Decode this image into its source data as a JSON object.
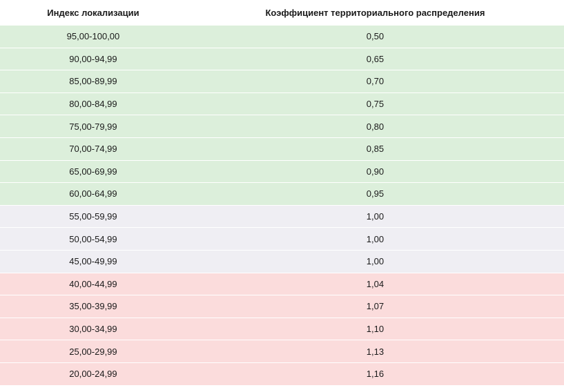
{
  "header": {
    "index_label": "Индекс локализации",
    "coef_label": "Коэффициент территориального распределения"
  },
  "colors": {
    "green": "#dcefdb",
    "grey": "#efeef3",
    "red": "#fbdcdc"
  },
  "rows": [
    {
      "index": "95,00-100,00",
      "coef": "0,50",
      "group": "green"
    },
    {
      "index": "90,00-94,99",
      "coef": "0,65",
      "group": "green"
    },
    {
      "index": "85,00-89,99",
      "coef": "0,70",
      "group": "green"
    },
    {
      "index": "80,00-84,99",
      "coef": "0,75",
      "group": "green"
    },
    {
      "index": "75,00-79,99",
      "coef": "0,80",
      "group": "green"
    },
    {
      "index": "70,00-74,99",
      "coef": "0,85",
      "group": "green"
    },
    {
      "index": "65,00-69,99",
      "coef": "0,90",
      "group": "green"
    },
    {
      "index": "60,00-64,99",
      "coef": "0,95",
      "group": "green"
    },
    {
      "index": "55,00-59,99",
      "coef": "1,00",
      "group": "grey"
    },
    {
      "index": "50,00-54,99",
      "coef": "1,00",
      "group": "grey"
    },
    {
      "index": "45,00-49,99",
      "coef": "1,00",
      "group": "grey"
    },
    {
      "index": "40,00-44,99",
      "coef": "1,04",
      "group": "red"
    },
    {
      "index": "35,00-39,99",
      "coef": "1,07",
      "group": "red"
    },
    {
      "index": "30,00-34,99",
      "coef": "1,10",
      "group": "red"
    },
    {
      "index": "25,00-29,99",
      "coef": "1,13",
      "group": "red"
    },
    {
      "index": "20,00-24,99",
      "coef": "1,16",
      "group": "red"
    }
  ]
}
